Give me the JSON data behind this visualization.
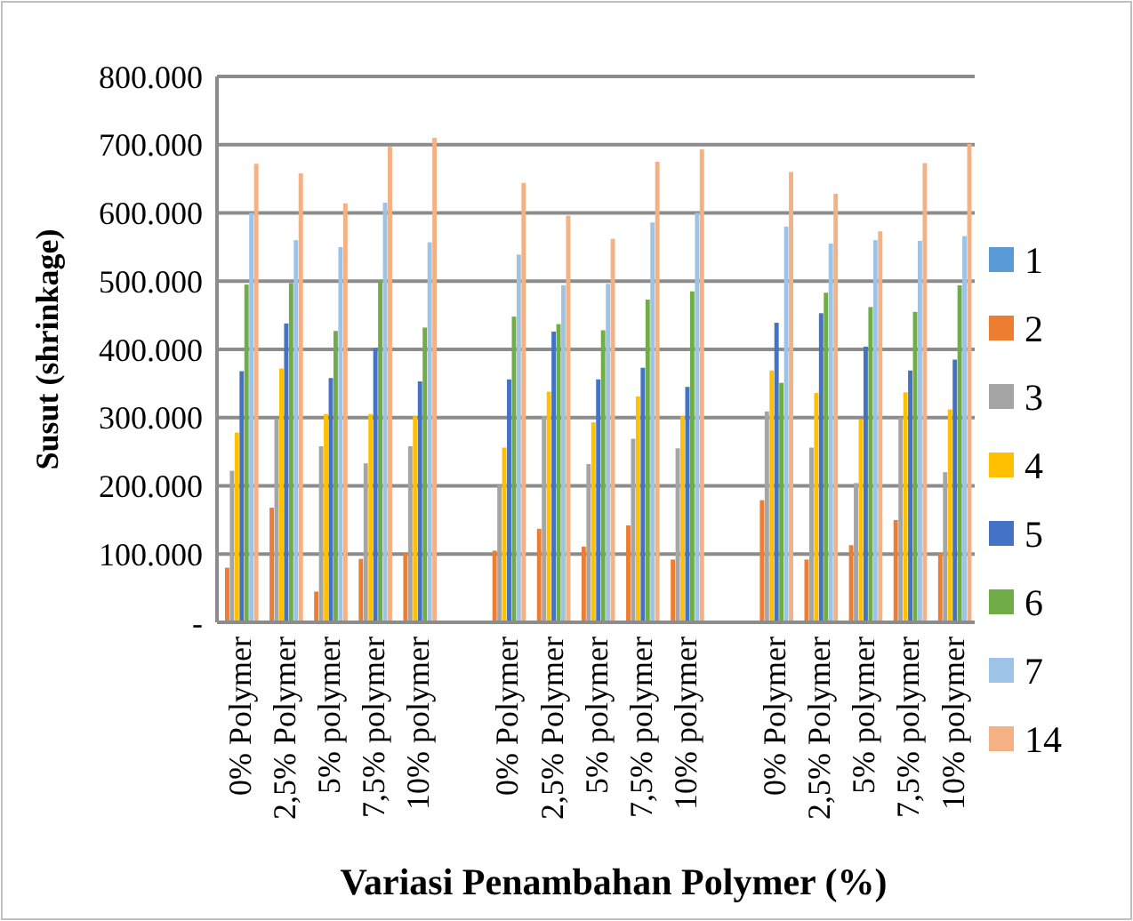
{
  "chart_data": {
    "type": "bar",
    "xlabel": "Variasi Penambahan Polymer (%)",
    "ylabel": "Susut (shrinkage)",
    "categories": [
      "0% Polymer",
      "2,5% Polymer",
      "5% polymer",
      "7,5% polymer",
      "10% polymer",
      null,
      "0% Polymer",
      "2,5% Polymer",
      "5% polymer",
      "7,5% polymer",
      "10% polymer",
      null,
      "0% Polymer",
      "2,5% Polymer",
      "5% polymer",
      "7,5% polymer",
      "10% polymer"
    ],
    "series": [
      {
        "name": "1",
        "color": "#5b9bd5",
        "values": [
          0,
          0,
          0,
          0,
          0,
          null,
          0,
          0,
          0,
          0,
          0,
          null,
          0,
          0,
          0,
          0,
          0
        ]
      },
      {
        "name": "2",
        "color": "#ed7d31",
        "values": [
          80000,
          168000,
          45000,
          93000,
          102000,
          null,
          105000,
          137000,
          111000,
          142000,
          92000,
          null,
          179000,
          92000,
          113000,
          150000,
          102000
        ]
      },
      {
        "name": "3",
        "color": "#a5a5a5",
        "values": [
          222000,
          298000,
          258000,
          233000,
          258000,
          null,
          201000,
          302000,
          232000,
          269000,
          255000,
          null,
          309000,
          256000,
          204000,
          300000,
          220000
        ]
      },
      {
        "name": "4",
        "color": "#ffc000",
        "values": [
          278000,
          372000,
          305000,
          305000,
          302000,
          null,
          256000,
          338000,
          293000,
          331000,
          302000,
          null,
          369000,
          336000,
          297000,
          337000,
          312000
        ]
      },
      {
        "name": "5",
        "color": "#4472c4",
        "values": [
          368000,
          438000,
          358000,
          402000,
          353000,
          null,
          356000,
          426000,
          356000,
          373000,
          345000,
          null,
          439000,
          453000,
          404000,
          369000,
          385000
        ]
      },
      {
        "name": "6",
        "color": "#70ad47",
        "values": [
          495000,
          497000,
          427000,
          502000,
          432000,
          null,
          448000,
          437000,
          428000,
          473000,
          485000,
          null,
          351000,
          483000,
          462000,
          455000,
          494000
        ]
      },
      {
        "name": "7",
        "color": "#9dc3e6",
        "values": [
          600000,
          560000,
          550000,
          615000,
          557000,
          null,
          539000,
          494000,
          496000,
          586000,
          600000,
          null,
          580000,
          555000,
          560000,
          559000,
          566000
        ]
      },
      {
        "name": "14",
        "color": "#f4b183",
        "values": [
          672000,
          658000,
          614000,
          697000,
          710000,
          null,
          644000,
          596000,
          562000,
          675000,
          693000,
          null,
          660000,
          628000,
          573000,
          673000,
          701000
        ]
      }
    ],
    "ylim": [
      0,
      800000
    ],
    "yticks": [
      {
        "value": 0,
        "label": "-"
      },
      {
        "value": 100000,
        "label": "100.000"
      },
      {
        "value": 200000,
        "label": "200.000"
      },
      {
        "value": 300000,
        "label": "300.000"
      },
      {
        "value": 400000,
        "label": "400.000"
      },
      {
        "value": 500000,
        "label": "500.000"
      },
      {
        "value": 600000,
        "label": "600.000"
      },
      {
        "value": 700000,
        "label": "700.000"
      },
      {
        "value": 800000,
        "label": "800.000"
      }
    ],
    "grid": "y",
    "legend": "right"
  }
}
